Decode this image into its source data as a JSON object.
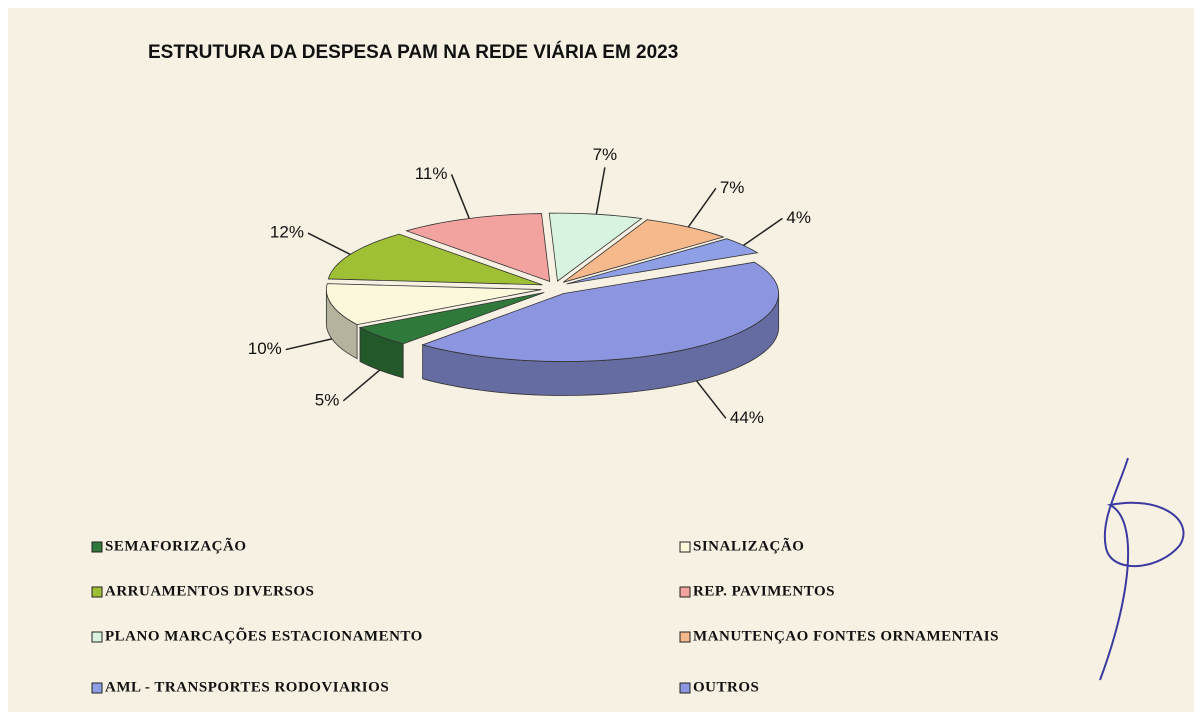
{
  "chart_data": {
    "type": "pie",
    "title": "ESTRUTURA  DA DESPESA PAM NA REDE VIÁRIA EM 2023",
    "categories": [
      "SEMAFORIZAÇÃO",
      "SINALIZAÇÃO",
      "ARRUAMENTOS DIVERSOS",
      "REP. PAVIMENTOS",
      "PLANO MARCAÇÕES ESTACIONAMENTO",
      "MANUTENÇAO FONTES ORNAMENTAIS",
      "AML - TRANSPORTES RODOVIARIOS",
      "OUTROS"
    ],
    "values": [
      5,
      10,
      12,
      11,
      7,
      7,
      4,
      44
    ],
    "value_labels": [
      "5%",
      "10%",
      "12%",
      "11%",
      "7%",
      "7%",
      "4%",
      "44%"
    ],
    "colors": [
      "#2f7a3a",
      "#fbf8dc",
      "#9fbf34",
      "#f2a3a0",
      "#d9f4de",
      "#f5b98c",
      "#8e9fe6",
      "#8c96e0"
    ]
  }
}
